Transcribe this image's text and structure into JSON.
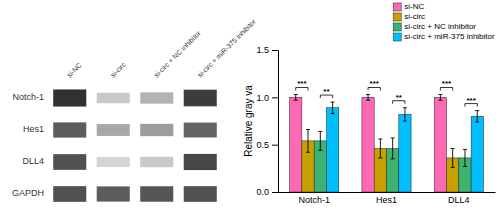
{
  "chart_data": [
    {
      "type": "heatmap",
      "x": [
        "si-NC",
        "si-circ",
        "si-circ + NC inhibitor",
        "si-circ + miR-375 inhibitor"
      ],
      "y": [
        "Notch-1",
        "Hes1",
        "DLL4",
        "GAPDH"
      ],
      "cells": [
        [
          0.95,
          0.25,
          0.35,
          0.9
        ],
        [
          0.75,
          0.4,
          0.45,
          0.72
        ],
        [
          0.8,
          0.2,
          0.25,
          0.85
        ],
        [
          0.8,
          0.75,
          0.78,
          0.8
        ]
      ]
    },
    {
      "type": "bar",
      "categories": [
        "Notch-1",
        "Hes1",
        "DLL4"
      ],
      "series": [
        {
          "name": "si-NC",
          "color": "#FF69B4",
          "values": [
            1.0,
            1.0,
            1.0
          ],
          "errors": [
            0.03,
            0.03,
            0.03
          ]
        },
        {
          "name": "si-circ",
          "color": "#C8A000",
          "values": [
            0.54,
            0.46,
            0.36
          ],
          "errors": [
            0.12,
            0.1,
            0.1
          ]
        },
        {
          "name": "si-circ + NC inhibitor",
          "color": "#3CB371",
          "values": [
            0.54,
            0.46,
            0.36
          ],
          "errors": [
            0.1,
            0.11,
            0.09
          ]
        },
        {
          "name": "si-circ + miR-375 inhibitor",
          "color": "#00BFFF",
          "values": [
            0.89,
            0.82,
            0.8
          ],
          "errors": [
            0.06,
            0.07,
            0.06
          ]
        }
      ],
      "ylabel": "Relative gray va",
      "ylim": [
        0.0,
        1.5
      ],
      "yticks": [
        {
          "value": 0.0,
          "label": "0.0"
        },
        0.5,
        {
          "value": 1.0,
          "label": "1.0"
        },
        1.5
      ],
      "legend": "upper right",
      "significance": [
        {
          "category": "Notch-1",
          "pair": [
            "si-NC",
            "si-circ"
          ],
          "label": "***"
        },
        {
          "category": "Notch-1",
          "pair": [
            "si-circ + NC inhibitor",
            "si-circ + miR-375 inhibitor"
          ],
          "label": "**"
        },
        {
          "category": "Hes1",
          "pair": [
            "si-NC",
            "si-circ"
          ],
          "label": "***"
        },
        {
          "category": "Hes1",
          "pair": [
            "si-circ + NC inhibitor",
            "si-circ + miR-375 inhibitor"
          ],
          "label": "**"
        },
        {
          "category": "DLL4",
          "pair": [
            "si-NC",
            "si-circ"
          ],
          "label": "***"
        },
        {
          "category": "DLL4",
          "pair": [
            "si-circ + NC inhibitor",
            "si-circ + miR-375 inhibitor"
          ],
          "label": "***"
        }
      ]
    }
  ]
}
